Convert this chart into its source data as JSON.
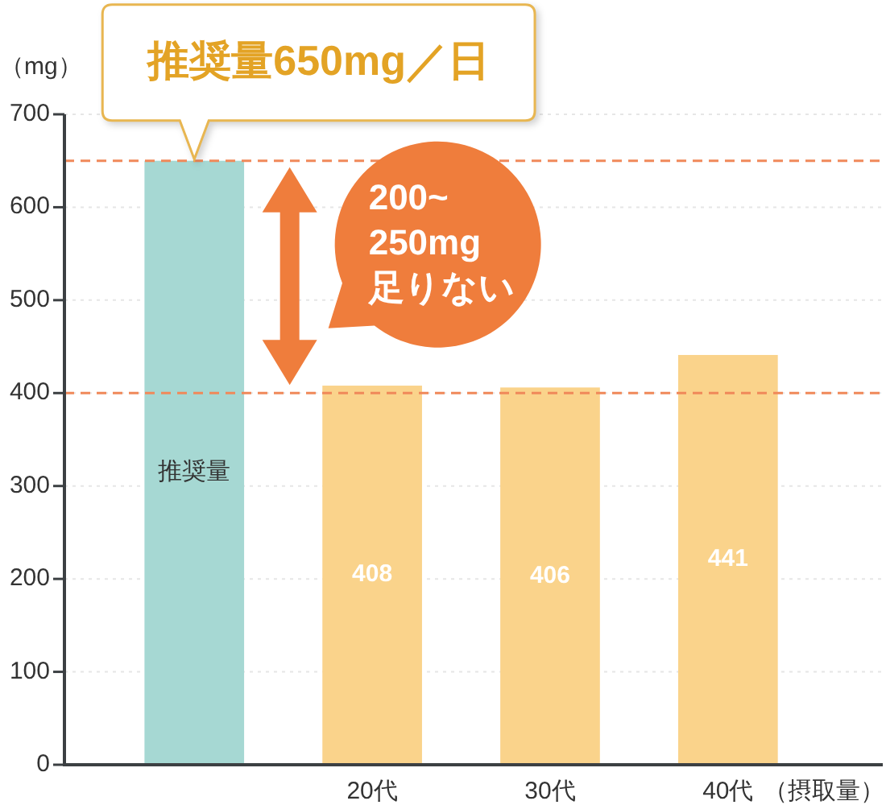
{
  "chart_data": {
    "type": "bar",
    "ylabel": "（mg）",
    "xlabel": "（摂取量）",
    "categories": [
      "推奨量",
      "20代",
      "30代",
      "40代"
    ],
    "values": [
      650,
      408,
      406,
      441
    ],
    "colors": [
      "#a6d8d3",
      "#fad38b",
      "#fad38b",
      "#fad38b"
    ],
    "value_labels": [
      null,
      "408",
      "406",
      "441"
    ],
    "ylim": [
      0,
      700
    ],
    "yticks": [
      0,
      100,
      200,
      300,
      400,
      500,
      600,
      700
    ],
    "grid": "y",
    "ref_lines": [
      {
        "axis": "y",
        "value": 650,
        "color": "#f0895a",
        "line_style": "dashed"
      },
      {
        "axis": "y",
        "value": 400,
        "color": "#f0895a",
        "line_style": "dashed"
      }
    ],
    "annotations": [
      {
        "text": "推奨量650mg／日",
        "x": "推奨量",
        "y": 650
      },
      "200~\n250mg\n足りない"
    ]
  }
}
